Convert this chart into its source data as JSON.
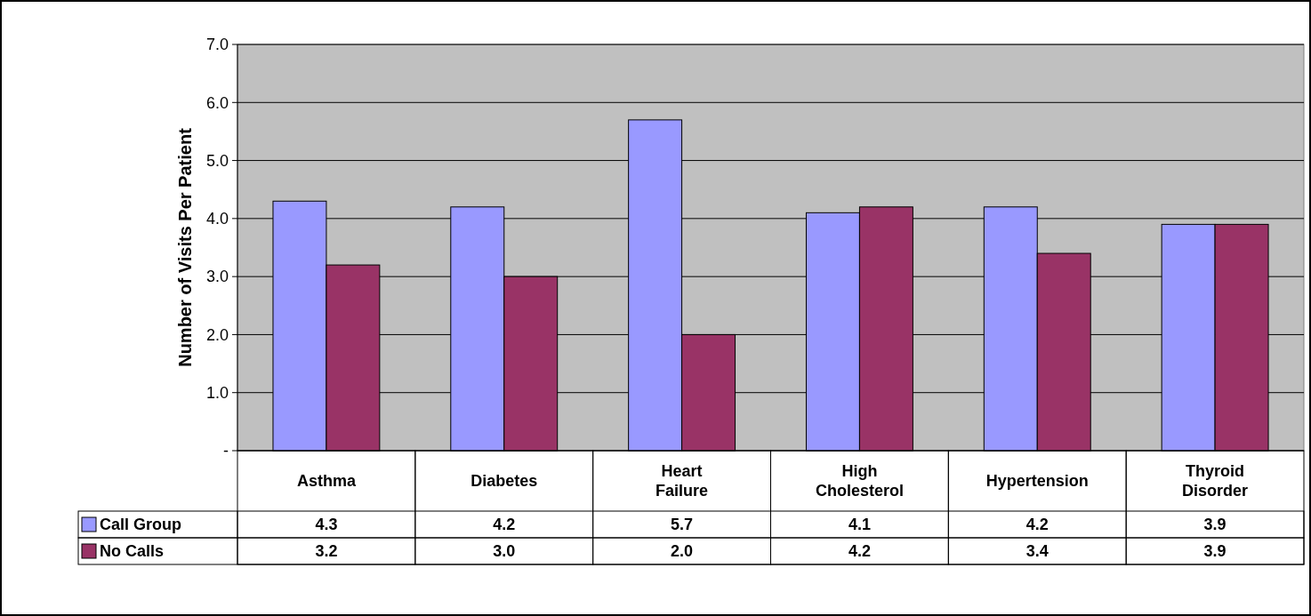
{
  "chart_data": {
    "type": "bar",
    "ylabel": "Number of Visits Per Patient",
    "categories": [
      "Asthma",
      "Diabetes",
      "Heart Failure",
      "High Cholesterol",
      "Hypertension",
      "Thyroid Disorder"
    ],
    "series": [
      {
        "name": "Call Group",
        "color": "#9999ff",
        "values": [
          4.3,
          4.2,
          5.7,
          4.1,
          4.2,
          3.9
        ],
        "value_labels": [
          "4.3",
          "4.2",
          "5.7",
          "4.1",
          "4.2",
          "3.9"
        ]
      },
      {
        "name": "No Calls",
        "color": "#993366",
        "values": [
          3.2,
          3.0,
          2.0,
          4.2,
          3.4,
          3.9
        ],
        "value_labels": [
          "3.2",
          "3.0",
          "2.0",
          "4.2",
          "3.4",
          "3.9"
        ]
      }
    ],
    "ylim": [
      0,
      7
    ],
    "yticks": [
      {
        "value": 0,
        "label": "-"
      },
      {
        "value": 1,
        "label": "1.0"
      },
      {
        "value": 2,
        "label": "2.0"
      },
      {
        "value": 3,
        "label": "3.0"
      },
      {
        "value": 4,
        "label": "4.0"
      },
      {
        "value": 5,
        "label": "5.0"
      },
      {
        "value": 6,
        "label": "6.0"
      },
      {
        "value": 7,
        "label": "7.0"
      }
    ],
    "grid": "y",
    "legend": "bottom"
  }
}
